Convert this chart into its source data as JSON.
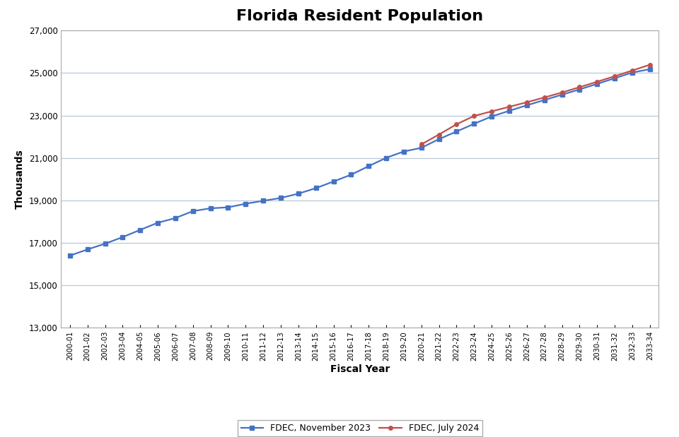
{
  "title": "Florida Resident Population",
  "xlabel": "Fiscal Year",
  "ylabel": "Thousands",
  "ylim": [
    13000,
    27000
  ],
  "yticks": [
    13000,
    15000,
    17000,
    19000,
    21000,
    23000,
    25000,
    27000
  ],
  "background_color": "#ffffff",
  "plot_background": "#ffffff",
  "grid_color": "#b8c8d8",
  "blue_color": "#4472C4",
  "red_color": "#C0504D",
  "fiscal_years": [
    "2000-01",
    "2001-02",
    "2002-03",
    "2003-04",
    "2004-05",
    "2005-06",
    "2006-07",
    "2007-08",
    "2008-09",
    "2009-10",
    "2010-11",
    "2011-12",
    "2012-13",
    "2013-14",
    "2014-15",
    "2015-16",
    "2016-17",
    "2017-18",
    "2018-19",
    "2019-20",
    "2020-21",
    "2021-22",
    "2022-23",
    "2023-24",
    "2024-25",
    "2025-26",
    "2026-27",
    "2027-28",
    "2028-29",
    "2029-30",
    "2030-31",
    "2031-32",
    "2032-33",
    "2033-34"
  ],
  "blue_values": [
    16397,
    16689,
    16960,
    17270,
    17611,
    17947,
    18166,
    18497,
    18626,
    18674,
    18843,
    18981,
    19115,
    19316,
    19578,
    19891,
    20211,
    20613,
    21007,
    21304,
    21477,
    21888,
    22244,
    22610,
    22955,
    23220,
    23480,
    23730,
    23980,
    24230,
    24490,
    24755,
    25025,
    25180
  ],
  "red_values": [
    null,
    null,
    null,
    null,
    null,
    null,
    null,
    null,
    null,
    null,
    null,
    null,
    null,
    null,
    null,
    null,
    null,
    null,
    null,
    null,
    21640,
    22105,
    22585,
    22980,
    23195,
    23410,
    23625,
    23850,
    24085,
    24335,
    24590,
    24850,
    25120,
    25390
  ],
  "legend_blue": "FDEC, November 2023",
  "legend_red": "FDEC, July 2024"
}
